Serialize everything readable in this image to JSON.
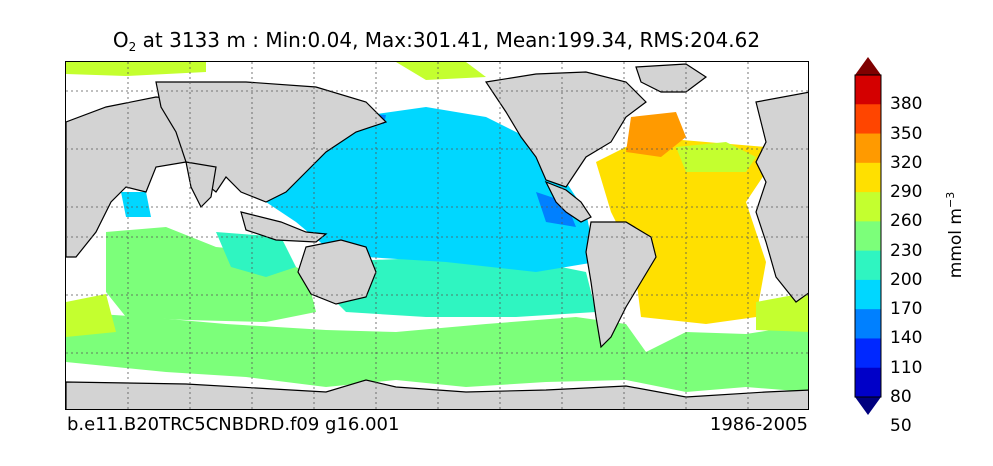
{
  "title": {
    "variable": "O",
    "subscript": "2",
    "text": " at 3133 m : Min:0.04, Max:301.41, Mean:199.34, RMS:204.62"
  },
  "footer": {
    "case_name": "b.e11.B20TRC5CNBDRD.f09 g16.001",
    "period": "1986-2005"
  },
  "colorbar": {
    "units_main": "mmol m",
    "units_exp": "−3",
    "ticks": [
      "380",
      "350",
      "320",
      "290",
      "260",
      "230",
      "200",
      "170",
      "140",
      "110",
      "80",
      "50"
    ],
    "colors": [
      "#7f0000",
      "#d40000",
      "#ff4500",
      "#ff9a00",
      "#ffe000",
      "#c4ff2f",
      "#7cff7a",
      "#2ff5c1",
      "#00d7ff",
      "#0080ff",
      "#0028ff",
      "#0000c8",
      "#00007f"
    ]
  },
  "map": {
    "land_color": "#d3d3d3",
    "missing_color": "#ffffff"
  }
}
